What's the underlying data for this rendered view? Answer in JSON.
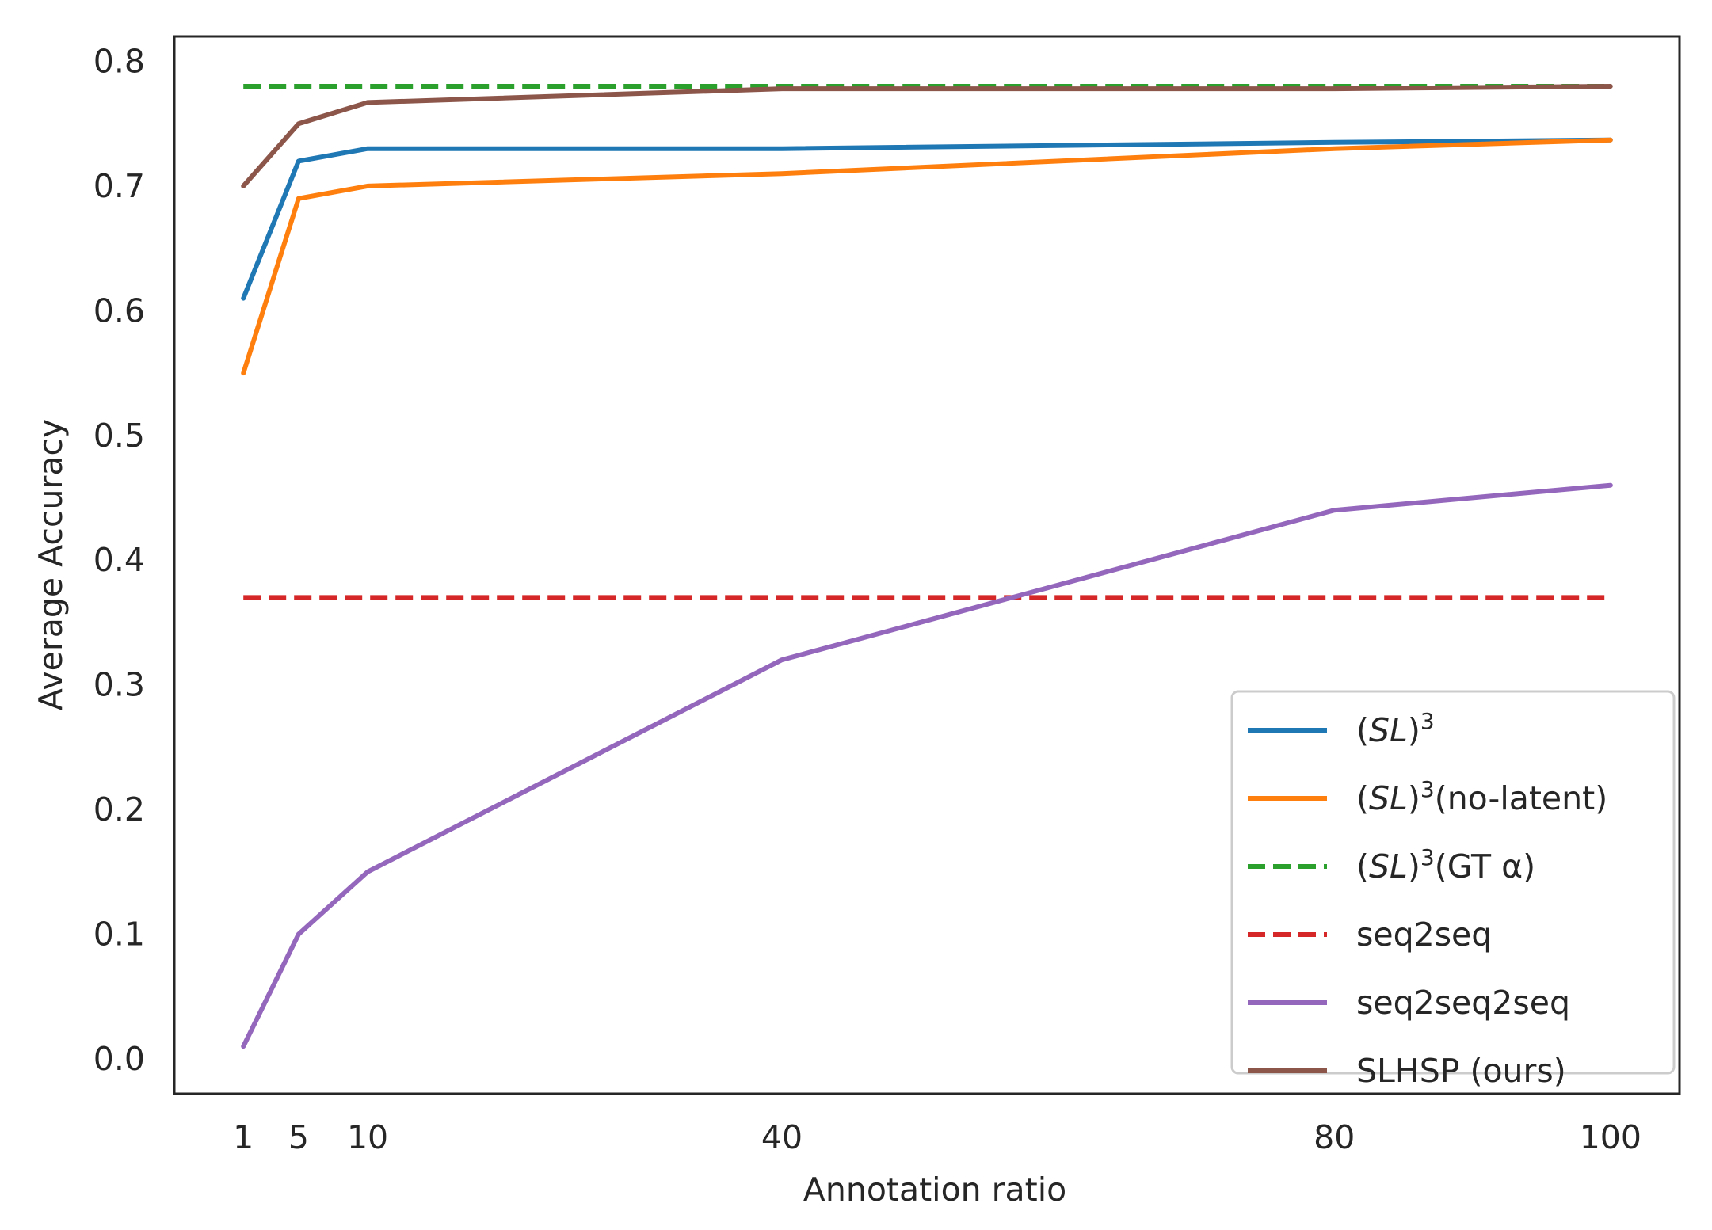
{
  "chart_data": {
    "type": "line",
    "title": "",
    "xlabel": "Annotation ratio",
    "ylabel": "Average Accuracy",
    "xlim": [
      -4,
      105
    ],
    "ylim": [
      -0.028,
      0.82
    ],
    "x_ticks": [
      1,
      5,
      10,
      40,
      80,
      100
    ],
    "x_tick_labels": [
      "1",
      "5",
      "10",
      "40",
      "80",
      "100"
    ],
    "y_ticks": [
      0.0,
      0.1,
      0.2,
      0.3,
      0.4,
      0.5,
      0.6,
      0.7,
      0.8
    ],
    "y_tick_labels": [
      "0.0",
      "0.1",
      "0.2",
      "0.3",
      "0.4",
      "0.5",
      "0.6",
      "0.7",
      "0.8"
    ],
    "grid": false,
    "legend_position": "bottom-right",
    "series": [
      {
        "key": "sl3",
        "name": "(SL)",
        "name_italic": "SL",
        "name_sup": "3",
        "name_suffix": "",
        "color": "#1f77b4",
        "style": "solid",
        "x": [
          1,
          5,
          10,
          40,
          80,
          100
        ],
        "y": [
          0.61,
          0.72,
          0.73,
          0.73,
          0.735,
          0.737
        ]
      },
      {
        "key": "sl3_nolatent",
        "name": "(SL)",
        "name_italic": "SL",
        "name_sup": "3",
        "name_suffix": "(no-latent)",
        "color": "#ff7f0e",
        "style": "solid",
        "x": [
          1,
          5,
          10,
          40,
          80,
          100
        ],
        "y": [
          0.55,
          0.69,
          0.7,
          0.71,
          0.73,
          0.737
        ]
      },
      {
        "key": "sl3_gt",
        "name": "(SL)",
        "name_italic": "SL",
        "name_sup": "3",
        "name_suffix": "(GT α)",
        "color": "#2ca02c",
        "style": "dashed",
        "x": [
          1,
          100
        ],
        "y": [
          0.78,
          0.78
        ]
      },
      {
        "key": "seq2seq",
        "name": "seq2seq",
        "color": "#d62728",
        "style": "dashed",
        "x": [
          1,
          100
        ],
        "y": [
          0.37,
          0.37
        ]
      },
      {
        "key": "seq2seq2seq",
        "name": "seq2seq2seq",
        "color": "#9467bd",
        "style": "solid",
        "x": [
          1,
          5,
          10,
          40,
          80,
          100
        ],
        "y": [
          0.01,
          0.1,
          0.15,
          0.32,
          0.44,
          0.46
        ]
      },
      {
        "key": "slhsp",
        "name": "SLHSP (ours)",
        "color": "#8c564b",
        "style": "solid",
        "x": [
          1,
          5,
          10,
          40,
          80,
          100
        ],
        "y": [
          0.7,
          0.75,
          0.767,
          0.778,
          0.778,
          0.78
        ]
      }
    ]
  }
}
